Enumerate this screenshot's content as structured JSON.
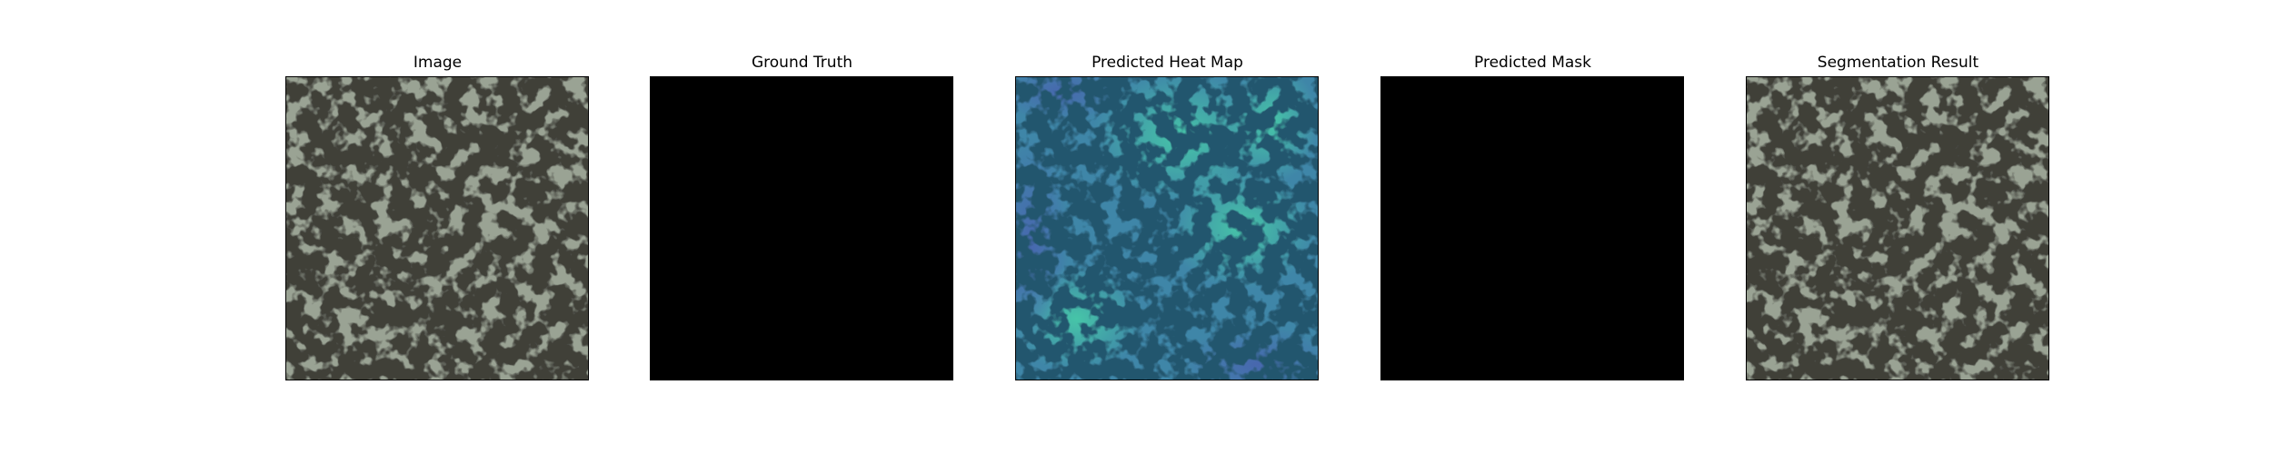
{
  "panels": [
    {
      "title": "Image",
      "content": "texture-photo"
    },
    {
      "title": "Ground Truth",
      "content": "empty-mask"
    },
    {
      "title": "Predicted Heat Map",
      "content": "heatmap-overlay"
    },
    {
      "title": "Predicted Mask",
      "content": "empty-mask"
    },
    {
      "title": "Segmentation Result",
      "content": "texture-photo"
    }
  ],
  "colors": {
    "background": "#ffffff",
    "frame": "#000000",
    "texture_light": "#9aa394",
    "texture_dark": "#3f3f39",
    "mask": "#000000",
    "heat_base": "#3f86a8",
    "heat_dark": "#24566e",
    "heat_hot": "#3fc0a0",
    "heat_cold": "#4e6fb8"
  }
}
